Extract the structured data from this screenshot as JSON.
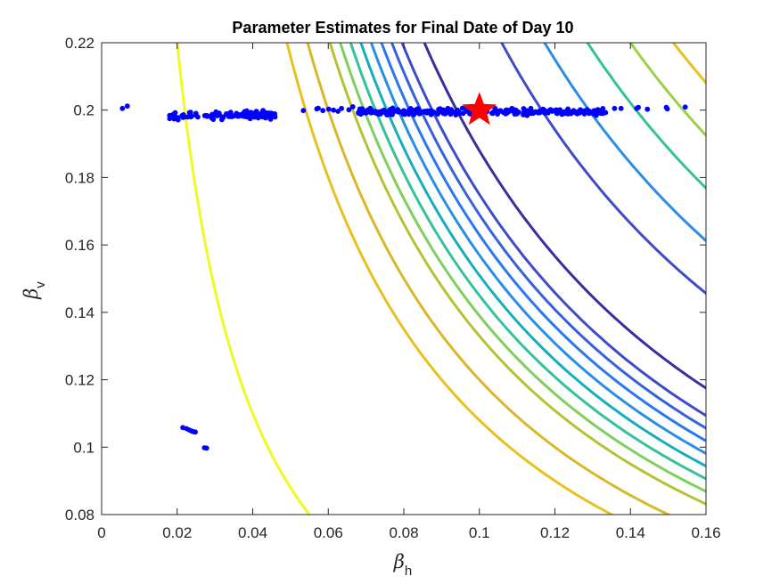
{
  "chart_data": {
    "type": "scatter",
    "title": "Parameter Estimates for Final Date of Day 10",
    "xlabel": {
      "symbol": "β",
      "subscript": "h"
    },
    "ylabel": {
      "symbol": "β",
      "subscript": "v"
    },
    "xlim": [
      0,
      0.16
    ],
    "ylim": [
      0.08,
      0.22
    ],
    "x_ticks": [
      "0",
      "0.02",
      "0.04",
      "0.06",
      "0.08",
      "0.1",
      "0.12",
      "0.14",
      "0.16"
    ],
    "y_ticks": [
      "0.08",
      "0.1",
      "0.12",
      "0.14",
      "0.16",
      "0.18",
      "0.2",
      "0.22"
    ],
    "grid": false,
    "legend": "none",
    "true_parameter": {
      "x": 0.1,
      "y": 0.2,
      "marker": "star",
      "color": "#ff0000"
    },
    "estimates_color": "#0000ff",
    "estimate_clusters": [
      {
        "x_range": [
          0.018,
          0.046
        ],
        "y_center": 0.1985,
        "y_spread": 0.0016,
        "count": 120
      },
      {
        "x_range": [
          0.05,
          0.072
        ],
        "y_center": 0.2002,
        "y_spread": 0.0008,
        "count": 10
      },
      {
        "x_range": [
          0.068,
          0.134
        ],
        "y_center": 0.1995,
        "y_spread": 0.0013,
        "count": 260
      },
      {
        "x_range": [
          0.134,
          0.154
        ],
        "y_center": 0.2005,
        "y_spread": 0.0005,
        "count": 5
      }
    ],
    "estimate_points": [
      {
        "x": 0.0215,
        "y": 0.1058
      },
      {
        "x": 0.0225,
        "y": 0.1055
      },
      {
        "x": 0.0232,
        "y": 0.1051
      },
      {
        "x": 0.0238,
        "y": 0.1048
      },
      {
        "x": 0.0243,
        "y": 0.1046
      },
      {
        "x": 0.0248,
        "y": 0.1045
      },
      {
        "x": 0.0272,
        "y": 0.0998
      },
      {
        "x": 0.0278,
        "y": 0.0997
      },
      {
        "x": 0.0068,
        "y": 0.2012
      },
      {
        "x": 0.0055,
        "y": 0.2005
      },
      {
        "x": 0.0665,
        "y": 0.201
      },
      {
        "x": 0.1375,
        "y": 0.2005
      },
      {
        "x": 0.1495,
        "y": 0.2008
      },
      {
        "x": 0.1545,
        "y": 0.2009
      }
    ],
    "contours": {
      "form": "x*y = level",
      "levels": [
        0.0044,
        0.0108,
        0.012,
        0.0133,
        0.0139,
        0.0145,
        0.0151,
        0.0157,
        0.0163,
        0.0169,
        0.0175,
        0.0188,
        0.0233,
        0.0258,
        0.0283,
        0.0308,
        0.0333
      ],
      "colors": [
        "#f0f921",
        "#e8c020",
        "#d8b82a",
        "#b5c233",
        "#7ecf5e",
        "#35c19a",
        "#16aebe",
        "#2a8ee6",
        "#2b77ef",
        "#3661d9",
        "#3f4cc7",
        "#3a2f9a",
        "#3f4cc7",
        "#2a8ee6",
        "#35c19a",
        "#9bd14a",
        "#e8c020"
      ]
    }
  }
}
